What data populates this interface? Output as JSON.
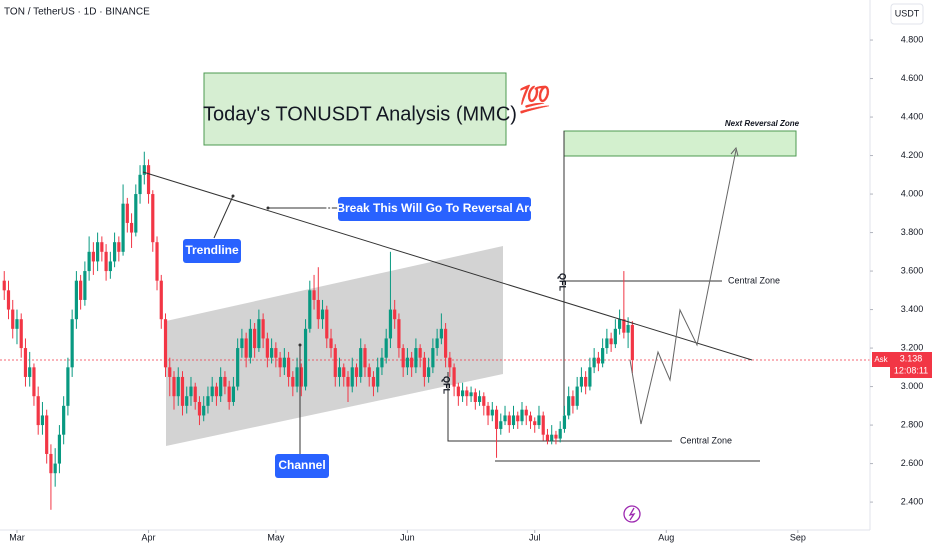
{
  "chart_data": {
    "type": "candlestick",
    "title": "TON / TetherUS · 1D · BINANCE",
    "currency": "USDT",
    "up_color": "#089981",
    "down_color": "#f23645",
    "xlim": [
      -1,
      204
    ],
    "xticks": [
      {
        "value": 3,
        "label": "Mar"
      },
      {
        "value": 34,
        "label": "Apr"
      },
      {
        "value": 64,
        "label": "May"
      },
      {
        "value": 95,
        "label": "Jun"
      },
      {
        "value": 125,
        "label": "Jul"
      },
      {
        "value": 156,
        "label": "Aug"
      },
      {
        "value": 187,
        "label": "Sep"
      }
    ],
    "ylim": [
      2.255,
      5.008
    ],
    "yticks": [
      {
        "value": 2.4,
        "label": "2.400"
      },
      {
        "value": 2.6,
        "label": "2.600"
      },
      {
        "value": 2.8,
        "label": "2.800"
      },
      {
        "value": 3,
        "label": "3.000"
      },
      {
        "value": 3.2,
        "label": "3.200"
      },
      {
        "value": 3.4,
        "label": "3.400"
      },
      {
        "value": 3.6,
        "label": "3.600"
      },
      {
        "value": 3.8,
        "label": "3.800"
      },
      {
        "value": 4,
        "label": "4.000"
      },
      {
        "value": 4.2,
        "label": "4.200"
      },
      {
        "value": 4.4,
        "label": "4.400"
      },
      {
        "value": 4.6,
        "label": "4.600"
      },
      {
        "value": 4.8,
        "label": "4.800"
      }
    ],
    "annotations": {
      "headline": "Today's TONUSDT Analysis (MMC)",
      "emoji": "💯",
      "reversal_zone": "Next Reversal Zone",
      "break_note": "If Break This Will Go To Reversal Area",
      "trendline": "Trendline",
      "channel": "Channel",
      "central_zone_upper": "Central Zone",
      "central_zone_lower": "Central Zone",
      "qfl_upper": "QFL",
      "qfl_lower": "QFL"
    },
    "last_price_tag": {
      "side": "Ask",
      "price": 3.138,
      "countdown": "12:08:11"
    },
    "candles": [
      [
        3.55,
        3.6,
        3.45,
        3.5
      ],
      [
        3.5,
        3.55,
        3.35,
        3.4
      ],
      [
        3.4,
        3.45,
        3.25,
        3.3
      ],
      [
        3.3,
        3.4,
        3.22,
        3.35
      ],
      [
        3.35,
        3.38,
        3.15,
        3.2
      ],
      [
        3.2,
        3.25,
        3.0,
        3.05
      ],
      [
        3.05,
        3.18,
        3.0,
        3.1
      ],
      [
        3.1,
        3.12,
        2.9,
        2.95
      ],
      [
        2.95,
        3.0,
        2.75,
        2.8
      ],
      [
        2.8,
        2.92,
        2.75,
        2.85
      ],
      [
        2.85,
        2.88,
        2.6,
        2.65
      ],
      [
        2.65,
        2.7,
        2.36,
        2.55
      ],
      [
        2.55,
        2.68,
        2.48,
        2.6
      ],
      [
        2.6,
        2.8,
        2.55,
        2.75
      ],
      [
        2.75,
        2.95,
        2.7,
        2.9
      ],
      [
        2.9,
        3.15,
        2.85,
        3.1
      ],
      [
        3.1,
        3.4,
        3.05,
        3.35
      ],
      [
        3.35,
        3.6,
        3.3,
        3.55
      ],
      [
        3.55,
        3.58,
        3.4,
        3.45
      ],
      [
        3.45,
        3.65,
        3.42,
        3.6
      ],
      [
        3.6,
        3.78,
        3.55,
        3.7
      ],
      [
        3.7,
        3.75,
        3.58,
        3.65
      ],
      [
        3.65,
        3.8,
        3.6,
        3.75
      ],
      [
        3.75,
        3.78,
        3.65,
        3.7
      ],
      [
        3.7,
        3.74,
        3.55,
        3.6
      ],
      [
        3.6,
        3.7,
        3.56,
        3.65
      ],
      [
        3.65,
        3.8,
        3.62,
        3.75
      ],
      [
        3.75,
        3.78,
        3.65,
        3.7
      ],
      [
        3.7,
        4.05,
        3.68,
        3.95
      ],
      [
        3.95,
        3.98,
        3.8,
        3.85
      ],
      [
        3.85,
        3.9,
        3.72,
        3.8
      ],
      [
        3.8,
        4.05,
        3.78,
        4.0
      ],
      [
        4.0,
        4.15,
        3.95,
        4.1
      ],
      [
        4.1,
        4.22,
        4.05,
        4.15
      ],
      [
        4.15,
        4.18,
        3.95,
        4.0
      ],
      [
        4.0,
        4.02,
        3.7,
        3.75
      ],
      [
        3.75,
        3.78,
        3.5,
        3.55
      ],
      [
        3.55,
        3.58,
        3.3,
        3.35
      ],
      [
        3.35,
        3.38,
        3.05,
        3.1
      ],
      [
        3.1,
        3.15,
        2.95,
        3.05
      ],
      [
        3.05,
        3.08,
        2.88,
        2.95
      ],
      [
        2.95,
        3.1,
        2.9,
        3.05
      ],
      [
        3.05,
        3.08,
        2.85,
        2.9
      ],
      [
        2.9,
        3.0,
        2.86,
        2.95
      ],
      [
        2.95,
        3.05,
        2.9,
        3.0
      ],
      [
        3.0,
        3.02,
        2.88,
        2.92
      ],
      [
        2.92,
        2.95,
        2.8,
        2.85
      ],
      [
        2.85,
        2.95,
        2.82,
        2.9
      ],
      [
        2.9,
        3.0,
        2.86,
        2.95
      ],
      [
        2.95,
        3.05,
        2.92,
        3.0
      ],
      [
        3.0,
        3.02,
        2.9,
        2.95
      ],
      [
        2.95,
        3.1,
        2.92,
        3.05
      ],
      [
        3.05,
        3.08,
        2.96,
        3.0
      ],
      [
        3.0,
        3.03,
        2.88,
        2.92
      ],
      [
        2.92,
        3.05,
        2.9,
        3.0
      ],
      [
        3.0,
        3.25,
        2.98,
        3.2
      ],
      [
        3.2,
        3.3,
        3.15,
        3.25
      ],
      [
        3.25,
        3.28,
        3.1,
        3.15
      ],
      [
        3.15,
        3.35,
        3.12,
        3.3
      ],
      [
        3.3,
        3.33,
        3.15,
        3.2
      ],
      [
        3.2,
        3.4,
        3.18,
        3.35
      ],
      [
        3.35,
        3.38,
        3.2,
        3.25
      ],
      [
        3.25,
        3.28,
        3.1,
        3.15
      ],
      [
        3.15,
        3.25,
        3.12,
        3.2
      ],
      [
        3.2,
        3.23,
        3.1,
        3.15
      ],
      [
        3.15,
        3.18,
        3.05,
        3.1
      ],
      [
        3.1,
        3.2,
        3.06,
        3.15
      ],
      [
        3.15,
        3.18,
        3.0,
        3.05
      ],
      [
        3.05,
        3.08,
        2.95,
        3.0
      ],
      [
        3.0,
        3.15,
        2.97,
        3.1
      ],
      [
        3.1,
        3.12,
        2.95,
        3.0
      ],
      [
        3.0,
        3.35,
        2.98,
        3.3
      ],
      [
        3.3,
        3.55,
        3.28,
        3.5
      ],
      [
        3.5,
        3.58,
        3.4,
        3.45
      ],
      [
        3.45,
        3.62,
        3.3,
        3.35
      ],
      [
        3.35,
        3.45,
        3.3,
        3.4
      ],
      [
        3.4,
        3.42,
        3.2,
        3.25
      ],
      [
        3.25,
        3.3,
        3.15,
        3.2
      ],
      [
        3.2,
        3.22,
        3.0,
        3.05
      ],
      [
        3.05,
        3.15,
        3.0,
        3.1
      ],
      [
        3.1,
        3.12,
        3.0,
        3.05
      ],
      [
        3.05,
        3.08,
        2.92,
        3.0
      ],
      [
        3.0,
        3.15,
        2.97,
        3.1
      ],
      [
        3.1,
        3.12,
        3.0,
        3.05
      ],
      [
        3.05,
        3.25,
        3.02,
        3.2
      ],
      [
        3.2,
        3.22,
        3.05,
        3.1
      ],
      [
        3.1,
        3.12,
        3.0,
        3.05
      ],
      [
        3.05,
        3.08,
        2.95,
        3.0
      ],
      [
        3.0,
        3.15,
        2.97,
        3.1
      ],
      [
        3.1,
        3.2,
        3.06,
        3.15
      ],
      [
        3.15,
        3.3,
        3.12,
        3.25
      ],
      [
        3.25,
        3.7,
        3.2,
        3.4
      ],
      [
        3.4,
        3.45,
        3.3,
        3.35
      ],
      [
        3.35,
        3.38,
        3.15,
        3.2
      ],
      [
        3.2,
        3.22,
        3.05,
        3.1
      ],
      [
        3.1,
        3.2,
        3.06,
        3.15
      ],
      [
        3.15,
        3.18,
        3.05,
        3.1
      ],
      [
        3.1,
        3.25,
        3.07,
        3.2
      ],
      [
        3.2,
        3.22,
        3.1,
        3.15
      ],
      [
        3.15,
        3.18,
        3.0,
        3.05
      ],
      [
        3.05,
        3.15,
        3.02,
        3.1
      ],
      [
        3.1,
        3.25,
        3.07,
        3.2
      ],
      [
        3.2,
        3.3,
        3.16,
        3.25
      ],
      [
        3.25,
        3.38,
        3.22,
        3.3
      ],
      [
        3.3,
        3.33,
        3.1,
        3.15
      ],
      [
        3.15,
        3.18,
        3.05,
        3.1
      ],
      [
        3.1,
        3.12,
        2.95,
        3.0
      ],
      [
        3.0,
        3.02,
        2.9,
        2.95
      ],
      [
        2.95,
        3.02,
        2.92,
        2.98
      ],
      [
        2.98,
        3.0,
        2.9,
        2.95
      ],
      [
        2.95,
        3.0,
        2.92,
        2.97
      ],
      [
        2.97,
        2.99,
        2.88,
        2.92
      ],
      [
        2.92,
        2.98,
        2.9,
        2.95
      ],
      [
        2.95,
        2.97,
        2.85,
        2.9
      ],
      [
        2.9,
        2.92,
        2.8,
        2.85
      ],
      [
        2.85,
        2.92,
        2.82,
        2.88
      ],
      [
        2.88,
        2.9,
        2.63,
        2.78
      ],
      [
        2.78,
        2.86,
        2.75,
        2.82
      ],
      [
        2.82,
        2.9,
        2.8,
        2.85
      ],
      [
        2.85,
        2.87,
        2.76,
        2.8
      ],
      [
        2.8,
        2.9,
        2.78,
        2.85
      ],
      [
        2.85,
        2.87,
        2.78,
        2.82
      ],
      [
        2.82,
        2.92,
        2.8,
        2.88
      ],
      [
        2.88,
        2.9,
        2.8,
        2.85
      ],
      [
        2.85,
        2.87,
        2.78,
        2.82
      ],
      [
        2.82,
        2.84,
        2.76,
        2.8
      ],
      [
        2.8,
        2.9,
        2.78,
        2.85
      ],
      [
        2.85,
        2.87,
        2.72,
        2.75
      ],
      [
        2.75,
        2.78,
        2.7,
        2.72
      ],
      [
        2.72,
        2.8,
        2.7,
        2.75
      ],
      [
        2.75,
        2.77,
        2.7,
        2.73
      ],
      [
        2.73,
        2.82,
        2.71,
        2.78
      ],
      [
        2.78,
        2.9,
        2.76,
        2.85
      ],
      [
        2.85,
        3.0,
        2.83,
        2.95
      ],
      [
        2.95,
        2.98,
        2.86,
        2.9
      ],
      [
        2.9,
        3.05,
        2.88,
        3.0
      ],
      [
        3.0,
        3.1,
        2.97,
        3.05
      ],
      [
        3.05,
        3.08,
        2.96,
        3.0
      ],
      [
        3.0,
        3.15,
        2.98,
        3.1
      ],
      [
        3.1,
        3.2,
        3.07,
        3.15
      ],
      [
        3.15,
        3.18,
        3.08,
        3.12
      ],
      [
        3.12,
        3.25,
        3.1,
        3.2
      ],
      [
        3.2,
        3.3,
        3.17,
        3.25
      ],
      [
        3.25,
        3.28,
        3.18,
        3.22
      ],
      [
        3.22,
        3.35,
        3.2,
        3.3
      ],
      [
        3.3,
        3.4,
        3.27,
        3.35
      ],
      [
        3.35,
        3.6,
        3.25,
        3.28
      ],
      [
        3.28,
        3.36,
        3.2,
        3.32
      ],
      [
        3.32,
        3.34,
        3.07,
        3.138
      ]
    ]
  }
}
